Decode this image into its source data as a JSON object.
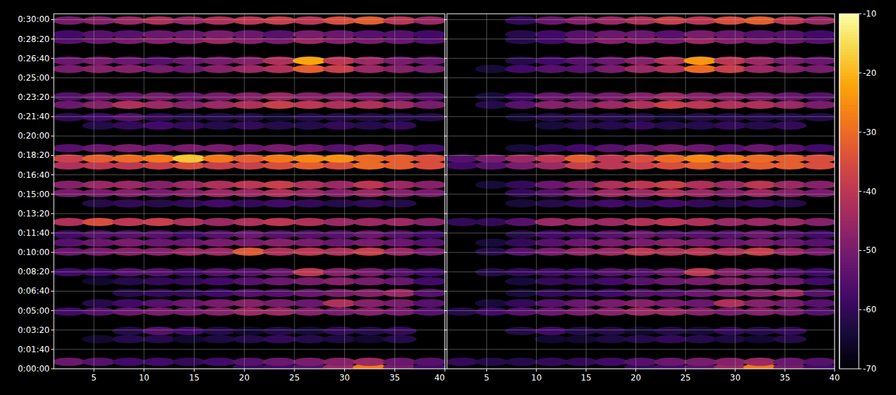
{
  "chart_data": [
    {
      "type": "heatmap",
      "grid": true,
      "xlim": [
        1,
        40
      ],
      "xticks": [
        5,
        10,
        15,
        20,
        25,
        30,
        35,
        40
      ],
      "ylim": [
        0,
        1830
      ],
      "yticks": [
        {
          "value": 0,
          "label": "0:00:00"
        },
        {
          "value": 100,
          "label": "0:01:40"
        },
        {
          "value": 200,
          "label": "0:03:20"
        },
        {
          "value": 300,
          "label": "0:05:00"
        },
        {
          "value": 400,
          "label": "0:06:40"
        },
        {
          "value": 500,
          "label": "0:08:20"
        },
        {
          "value": 600,
          "label": "0:10:00"
        },
        {
          "value": 700,
          "label": "0:11:40"
        },
        {
          "value": 800,
          "label": "0:13:20"
        },
        {
          "value": 900,
          "label": "0:15:00"
        },
        {
          "value": 1000,
          "label": "0:16:40"
        },
        {
          "value": 1100,
          "label": "0:18:20"
        },
        {
          "value": 1200,
          "label": "0:20:00"
        },
        {
          "value": 1300,
          "label": "0:21:40"
        },
        {
          "value": 1400,
          "label": "0:23:20"
        },
        {
          "value": 1500,
          "label": "0:25:00"
        },
        {
          "value": 1600,
          "label": "0:26:40"
        },
        {
          "value": 1700,
          "label": "0:28:20"
        },
        {
          "value": 1800,
          "label": "0:30:00"
        }
      ],
      "x": [
        2.5,
        5.5,
        8.5,
        11.5,
        14.5,
        17.5,
        20.5,
        23.5,
        26.5,
        29.5,
        32.5,
        35.5,
        38.5
      ],
      "y": [
        7,
        36,
        153,
        195,
        295,
        338,
        391,
        451,
        498,
        604,
        650,
        693,
        757,
        853,
        906,
        949,
        1048,
        1084,
        1137,
        1254,
        1297,
        1361,
        1404,
        1546,
        1588,
        1695,
        1724,
        1795
      ],
      "values": [
        [
          null,
          null,
          null,
          null,
          null,
          null,
          -60,
          -58,
          -55,
          -45,
          -28,
          -50,
          -58
        ],
        [
          -52,
          -55,
          -58,
          -58,
          -60,
          -58,
          -55,
          -52,
          -50,
          -48,
          -45,
          -52,
          -55
        ],
        [
          null,
          -65,
          -62,
          -62,
          -65,
          -63,
          -62,
          -60,
          -62,
          -63,
          -65,
          -62,
          null
        ],
        [
          null,
          null,
          -62,
          -55,
          -58,
          -62,
          -65,
          -62,
          -64,
          -60,
          -62,
          -60,
          null
        ],
        [
          -58,
          -55,
          -52,
          -50,
          -50,
          -48,
          -45,
          -45,
          -48,
          -50,
          -48,
          -50,
          -55
        ],
        [
          null,
          -62,
          -58,
          -55,
          -52,
          -50,
          -48,
          -50,
          -52,
          -42,
          -48,
          -50,
          -55
        ],
        [
          null,
          null,
          -62,
          -60,
          -60,
          -58,
          -55,
          -55,
          -52,
          -50,
          -48,
          -45,
          -55
        ],
        [
          null,
          -65,
          -62,
          -60,
          -60,
          -58,
          -55,
          -52,
          -50,
          -48,
          -50,
          -52,
          -58
        ],
        [
          -58,
          -58,
          -55,
          -55,
          -58,
          -55,
          -55,
          -52,
          -40,
          -48,
          -50,
          -55,
          -58
        ],
        [
          -52,
          -50,
          -48,
          -48,
          -45,
          -45,
          -33,
          -42,
          -40,
          -42,
          -38,
          -45,
          -50
        ],
        [
          -55,
          -52,
          -50,
          -52,
          -52,
          -50,
          -50,
          -48,
          -50,
          -52,
          -50,
          -52,
          -55
        ],
        [
          -58,
          -55,
          -55,
          -55,
          -58,
          -55,
          -52,
          -55,
          -55,
          -55,
          -52,
          -55,
          -58
        ],
        [
          -42,
          -35,
          -40,
          -38,
          -42,
          -45,
          -42,
          -40,
          -42,
          -45,
          -45,
          -45,
          -48
        ],
        [
          null,
          -62,
          -60,
          -62,
          -60,
          -58,
          -60,
          -58,
          -60,
          -62,
          -60,
          -62,
          null
        ],
        [
          -50,
          -50,
          -48,
          -50,
          -48,
          -45,
          -45,
          -42,
          -45,
          -48,
          -45,
          -48,
          -50
        ],
        [
          -48,
          -45,
          -45,
          -48,
          -45,
          -42,
          -40,
          -38,
          -42,
          -45,
          -40,
          -45,
          -48
        ],
        [
          -42,
          -40,
          -40,
          -38,
          -35,
          -38,
          -38,
          -35,
          -32,
          -35,
          -30,
          -32,
          -35
        ],
        [
          -38,
          -32,
          -30,
          -28,
          -18,
          -28,
          -32,
          -28,
          -26,
          -25,
          -30,
          -32,
          -35
        ],
        [
          -55,
          -52,
          -50,
          -52,
          -50,
          -50,
          -52,
          -50,
          -52,
          -55,
          -52,
          -55,
          -58
        ],
        [
          null,
          -62,
          -60,
          -58,
          -60,
          -62,
          -60,
          -62,
          -62,
          -60,
          -62,
          -60,
          null
        ],
        [
          -60,
          -58,
          -55,
          -60,
          -62,
          -62,
          -62,
          -65,
          -62,
          -62,
          -62,
          -62,
          -62
        ],
        [
          -52,
          -48,
          -42,
          -45,
          -48,
          -45,
          -42,
          -38,
          -40,
          -42,
          -42,
          -45,
          -50
        ],
        [
          -55,
          -52,
          -52,
          -50,
          -52,
          -50,
          -48,
          -45,
          -48,
          -48,
          -50,
          -52,
          -55
        ],
        [
          -50,
          -48,
          -48,
          -50,
          -52,
          -48,
          -45,
          -42,
          -32,
          -38,
          -45,
          -48,
          -50
        ],
        [
          -52,
          -50,
          -52,
          -55,
          -52,
          -50,
          -48,
          -42,
          -22,
          -40,
          -45,
          -50,
          -52
        ],
        [
          -55,
          -52,
          -50,
          -48,
          -48,
          -45,
          -48,
          -50,
          -45,
          -48,
          -50,
          -52,
          -55
        ],
        [
          -58,
          -55,
          -55,
          -52,
          -52,
          -50,
          -52,
          -55,
          -50,
          -52,
          -55,
          -55,
          -58
        ],
        [
          -50,
          -48,
          -45,
          -42,
          -45,
          -42,
          -40,
          -38,
          -40,
          -35,
          -32,
          -40,
          -45
        ]
      ]
    },
    {
      "type": "heatmap",
      "grid": true,
      "tick_labels": "x",
      "xlim": [
        1,
        40
      ],
      "xticks": [
        5,
        10,
        15,
        20,
        25,
        30,
        35,
        40
      ],
      "ylim": [
        0,
        1830
      ],
      "yticks": [
        0,
        100,
        200,
        300,
        400,
        500,
        600,
        700,
        800,
        900,
        1000,
        1100,
        1200,
        1300,
        1400,
        1500,
        1600,
        1700,
        1800
      ],
      "x": [
        2.5,
        5.5,
        8.5,
        11.5,
        14.5,
        17.5,
        20.5,
        23.5,
        26.5,
        29.5,
        32.5,
        35.5,
        38.5
      ],
      "y": [
        7,
        36,
        153,
        195,
        295,
        338,
        391,
        451,
        498,
        604,
        650,
        693,
        757,
        853,
        906,
        949,
        1048,
        1084,
        1137,
        1254,
        1297,
        1361,
        1404,
        1546,
        1588,
        1695,
        1724,
        1795
      ],
      "values": [
        [
          null,
          null,
          null,
          null,
          null,
          null,
          -60,
          -58,
          -55,
          -45,
          -28,
          -50,
          -58
        ],
        [
          -60,
          -62,
          -62,
          -60,
          -60,
          -58,
          -55,
          -52,
          -50,
          -48,
          -45,
          -52,
          -55
        ],
        [
          null,
          null,
          null,
          -65,
          -65,
          -63,
          -62,
          -60,
          -62,
          -63,
          -65,
          -62,
          null
        ],
        [
          null,
          null,
          -62,
          -58,
          -62,
          -62,
          -65,
          -62,
          -64,
          -60,
          -62,
          -60,
          null
        ],
        [
          -62,
          -58,
          -55,
          -52,
          -50,
          -48,
          -45,
          -45,
          -48,
          -50,
          -48,
          -50,
          -55
        ],
        [
          null,
          -64,
          -60,
          -55,
          -52,
          -50,
          -48,
          -50,
          -52,
          -42,
          -48,
          -50,
          -55
        ],
        [
          null,
          null,
          -64,
          -60,
          -60,
          -58,
          -55,
          -55,
          -52,
          -50,
          -48,
          -45,
          -55
        ],
        [
          null,
          null,
          -64,
          -60,
          -60,
          -58,
          -55,
          -52,
          -50,
          -48,
          -50,
          -52,
          -58
        ],
        [
          null,
          -62,
          -60,
          -58,
          -58,
          -55,
          -55,
          -52,
          -40,
          -48,
          -50,
          -55,
          -58
        ],
        [
          null,
          -62,
          -55,
          -50,
          -46,
          -45,
          -40,
          -42,
          -40,
          -42,
          -38,
          -45,
          -50
        ],
        [
          null,
          -64,
          -60,
          -55,
          -52,
          -50,
          -50,
          -48,
          -50,
          -52,
          -50,
          -52,
          -55
        ],
        [
          null,
          null,
          -62,
          -58,
          -58,
          -55,
          -52,
          -55,
          -55,
          -55,
          -52,
          -55,
          -58
        ],
        [
          -60,
          -60,
          -55,
          -45,
          -45,
          -45,
          -42,
          -40,
          -42,
          -45,
          -45,
          -45,
          -48
        ],
        [
          null,
          null,
          -64,
          -62,
          -60,
          -58,
          -60,
          -58,
          -60,
          -62,
          -60,
          -62,
          null
        ],
        [
          null,
          null,
          -60,
          -55,
          -50,
          -45,
          -45,
          -42,
          -45,
          -48,
          -45,
          -48,
          -50
        ],
        [
          null,
          -64,
          -60,
          -52,
          -48,
          -42,
          -40,
          -38,
          -42,
          -45,
          -40,
          -45,
          -48
        ],
        [
          -58,
          -55,
          -50,
          -45,
          -38,
          -40,
          -38,
          -35,
          -32,
          -35,
          -32,
          -32,
          -35
        ],
        [
          -55,
          -50,
          -45,
          -40,
          -32,
          -40,
          -35,
          -30,
          -26,
          -28,
          -30,
          -32,
          -35
        ],
        [
          null,
          null,
          -64,
          -60,
          -58,
          -55,
          -52,
          -50,
          -52,
          -55,
          -52,
          -55,
          -58
        ],
        [
          null,
          null,
          null,
          -64,
          -62,
          -62,
          -60,
          -62,
          -62,
          -60,
          -62,
          -60,
          null
        ],
        [
          null,
          null,
          -65,
          -62,
          -62,
          -62,
          -62,
          -65,
          -62,
          -62,
          -62,
          -62,
          -62
        ],
        [
          null,
          -62,
          -55,
          -48,
          -48,
          -45,
          -42,
          -38,
          -40,
          -42,
          -42,
          -45,
          -50
        ],
        [
          null,
          -64,
          -58,
          -52,
          -52,
          -50,
          -48,
          -45,
          -48,
          -48,
          -50,
          -52,
          -55
        ],
        [
          null,
          -64,
          -58,
          -55,
          -55,
          -50,
          -45,
          -42,
          -30,
          -38,
          -45,
          -48,
          -50
        ],
        [
          null,
          null,
          -62,
          -58,
          -55,
          -52,
          -48,
          -42,
          -24,
          -40,
          -45,
          -50,
          -52
        ],
        [
          null,
          null,
          -62,
          -58,
          -52,
          -48,
          -48,
          -50,
          -45,
          -48,
          -50,
          -52,
          -55
        ],
        [
          null,
          null,
          -62,
          -58,
          -55,
          -52,
          -52,
          -55,
          -50,
          -52,
          -55,
          -55,
          -58
        ],
        [
          null,
          null,
          -60,
          -52,
          -48,
          -45,
          -42,
          -38,
          -40,
          -35,
          -32,
          -40,
          -45
        ]
      ],
      "colorbar": {
        "range": [
          -70,
          -10
        ],
        "ticks": [
          -70,
          -60,
          -50,
          -40,
          -30,
          -20,
          -10
        ]
      }
    }
  ]
}
